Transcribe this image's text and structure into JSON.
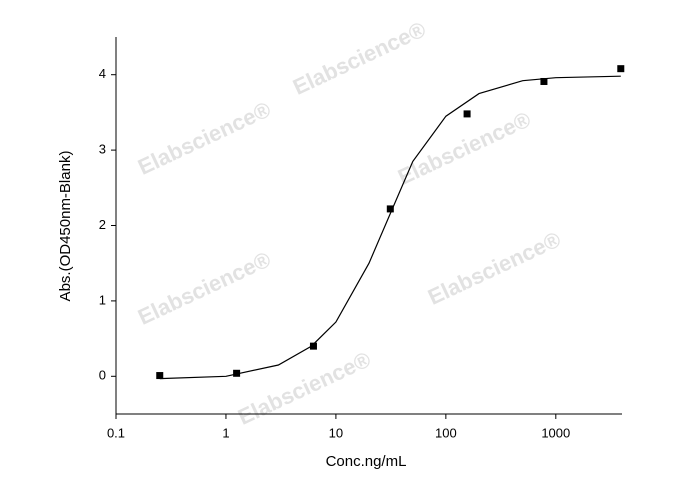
{
  "chart_data": {
    "type": "scatter",
    "x_label": "Conc.ng/mL",
    "y_label": "Abs.(OD450nm-Blank)",
    "watermark": "Elabscience®",
    "xscale": "log",
    "x": [
      0.25,
      1.25,
      6.25,
      31.25,
      156,
      780,
      3900
    ],
    "values": [
      0.01,
      0.04,
      0.4,
      2.22,
      3.48,
      3.91,
      4.08
    ],
    "color": "#000000",
    "fit": {
      "color": "#000000",
      "x": [
        0.25,
        1,
        3,
        6,
        10,
        20,
        30,
        50,
        100,
        200,
        500,
        1000,
        3900
      ],
      "values": [
        -0.03,
        0.0,
        0.15,
        0.4,
        0.72,
        1.5,
        2.1,
        2.85,
        3.45,
        3.75,
        3.92,
        3.96,
        3.98
      ]
    },
    "xlim": [
      0.1,
      4000
    ],
    "ylim": [
      -0.5,
      4.5
    ],
    "xticks": [
      0.1,
      1,
      10,
      100,
      1000
    ],
    "yticks": [
      0,
      1,
      2,
      3,
      4
    ],
    "grid": false
  }
}
